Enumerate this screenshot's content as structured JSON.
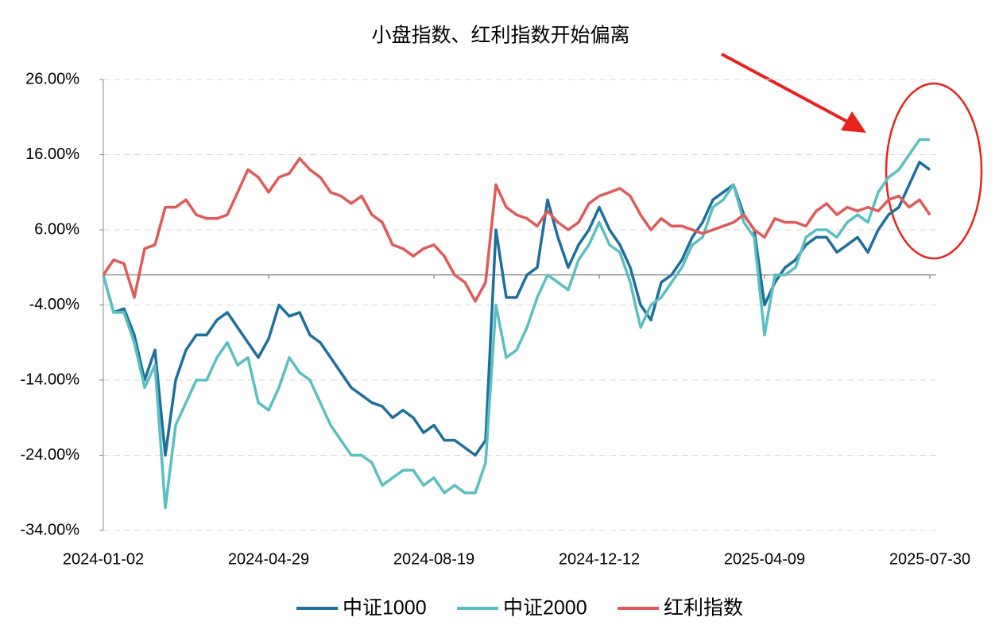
{
  "chart_data": {
    "type": "line",
    "title": "小盘指数、红利指数开始偏离",
    "categories": [
      "2024-01-02",
      null,
      null,
      null,
      null,
      null,
      null,
      null,
      null,
      null,
      null,
      null,
      null,
      null,
      null,
      null,
      "2024-04-29",
      null,
      null,
      null,
      null,
      null,
      null,
      null,
      null,
      null,
      null,
      null,
      null,
      null,
      null,
      null,
      "2024-08-19",
      null,
      null,
      null,
      null,
      null,
      null,
      null,
      null,
      null,
      null,
      null,
      null,
      null,
      null,
      null,
      "2024-12-12",
      null,
      null,
      null,
      null,
      null,
      null,
      null,
      null,
      null,
      null,
      null,
      null,
      null,
      null,
      null,
      "2025-04-09",
      null,
      null,
      null,
      null,
      null,
      null,
      null,
      null,
      null,
      null,
      null,
      null,
      null,
      null,
      null,
      "2025-07-30"
    ],
    "series": [
      {
        "name": "中证1000",
        "color": "#1f6f9c",
        "values": [
          0,
          -5,
          -4.5,
          -8,
          -14,
          -10,
          -24,
          -14,
          -10,
          -8,
          -8,
          -6,
          -5,
          -7,
          -9,
          -11,
          -8.5,
          -4,
          -5.5,
          -5,
          -8,
          -9,
          -11,
          -13,
          -15,
          -16,
          -17,
          -17.5,
          -19,
          -18,
          -19,
          -21,
          -20,
          -22,
          -22,
          -23,
          -24,
          -22,
          6,
          -3,
          -3,
          0,
          1,
          10,
          5,
          1,
          4,
          6,
          9,
          6,
          4,
          1,
          -4,
          -6,
          -1,
          0,
          2,
          5,
          7,
          10,
          11,
          12,
          8,
          6,
          -4,
          -1,
          1,
          2,
          4,
          5,
          5,
          3,
          4,
          5,
          3,
          6,
          8,
          9,
          12,
          15,
          14
        ]
      },
      {
        "name": "中证2000",
        "color": "#5bbfc2",
        "values": [
          0,
          -5,
          -5,
          -9,
          -15,
          -12,
          -31,
          -20,
          -17,
          -14,
          -14,
          -11,
          -9,
          -12,
          -11,
          -17,
          -18,
          -15,
          -11,
          -13,
          -14,
          -17,
          -20,
          -22,
          -24,
          -24,
          -25,
          -28,
          -27,
          -26,
          -26,
          -28,
          -27,
          -29,
          -28,
          -29,
          -29,
          -25,
          -4,
          -11,
          -10,
          -7,
          -3,
          0,
          -1,
          -2,
          2,
          4,
          7,
          4,
          3,
          -1,
          -7,
          -4,
          -3,
          -1,
          1,
          4,
          5,
          9,
          10,
          12,
          7,
          5,
          -8,
          0,
          0,
          1,
          5,
          6,
          6,
          5,
          7,
          8,
          7,
          11,
          13,
          14,
          16,
          18,
          18
        ]
      },
      {
        "name": "红利指数",
        "color": "#e05a5a",
        "values": [
          0,
          2,
          1.5,
          -3,
          3.5,
          4,
          9,
          9,
          10,
          8,
          7.5,
          7.5,
          8,
          11,
          14,
          13,
          11,
          13,
          13.5,
          15.5,
          14,
          13,
          11,
          10.5,
          9.5,
          10.5,
          8,
          7,
          4,
          3.5,
          2.5,
          3.5,
          4,
          2.5,
          0,
          -1,
          -3.5,
          -1,
          12,
          9,
          8,
          7.5,
          6.5,
          8.5,
          7,
          6,
          7,
          9.5,
          10.5,
          11,
          11.5,
          10.5,
          8,
          6,
          7.5,
          6.5,
          6.5,
          6,
          5.5,
          6,
          6.5,
          7,
          8,
          6,
          5,
          7.5,
          7,
          7,
          6.5,
          8.5,
          9.5,
          8,
          9,
          8.5,
          9,
          8.5,
          10,
          10.5,
          9,
          10,
          8
        ]
      }
    ],
    "ylim": [
      -34,
      26
    ],
    "yticks": [
      {
        "value": 26,
        "label": "26.00%"
      },
      {
        "value": 16,
        "label": "16.00%"
      },
      {
        "value": 6,
        "label": "6.00%"
      },
      {
        "value": -4,
        "label": "-4.00%"
      },
      {
        "value": -14,
        "label": "-14.00%"
      },
      {
        "value": -24,
        "label": "-24.00%"
      },
      {
        "value": -34,
        "label": "-34.00%"
      }
    ],
    "grid": true,
    "legend": "bottom"
  }
}
